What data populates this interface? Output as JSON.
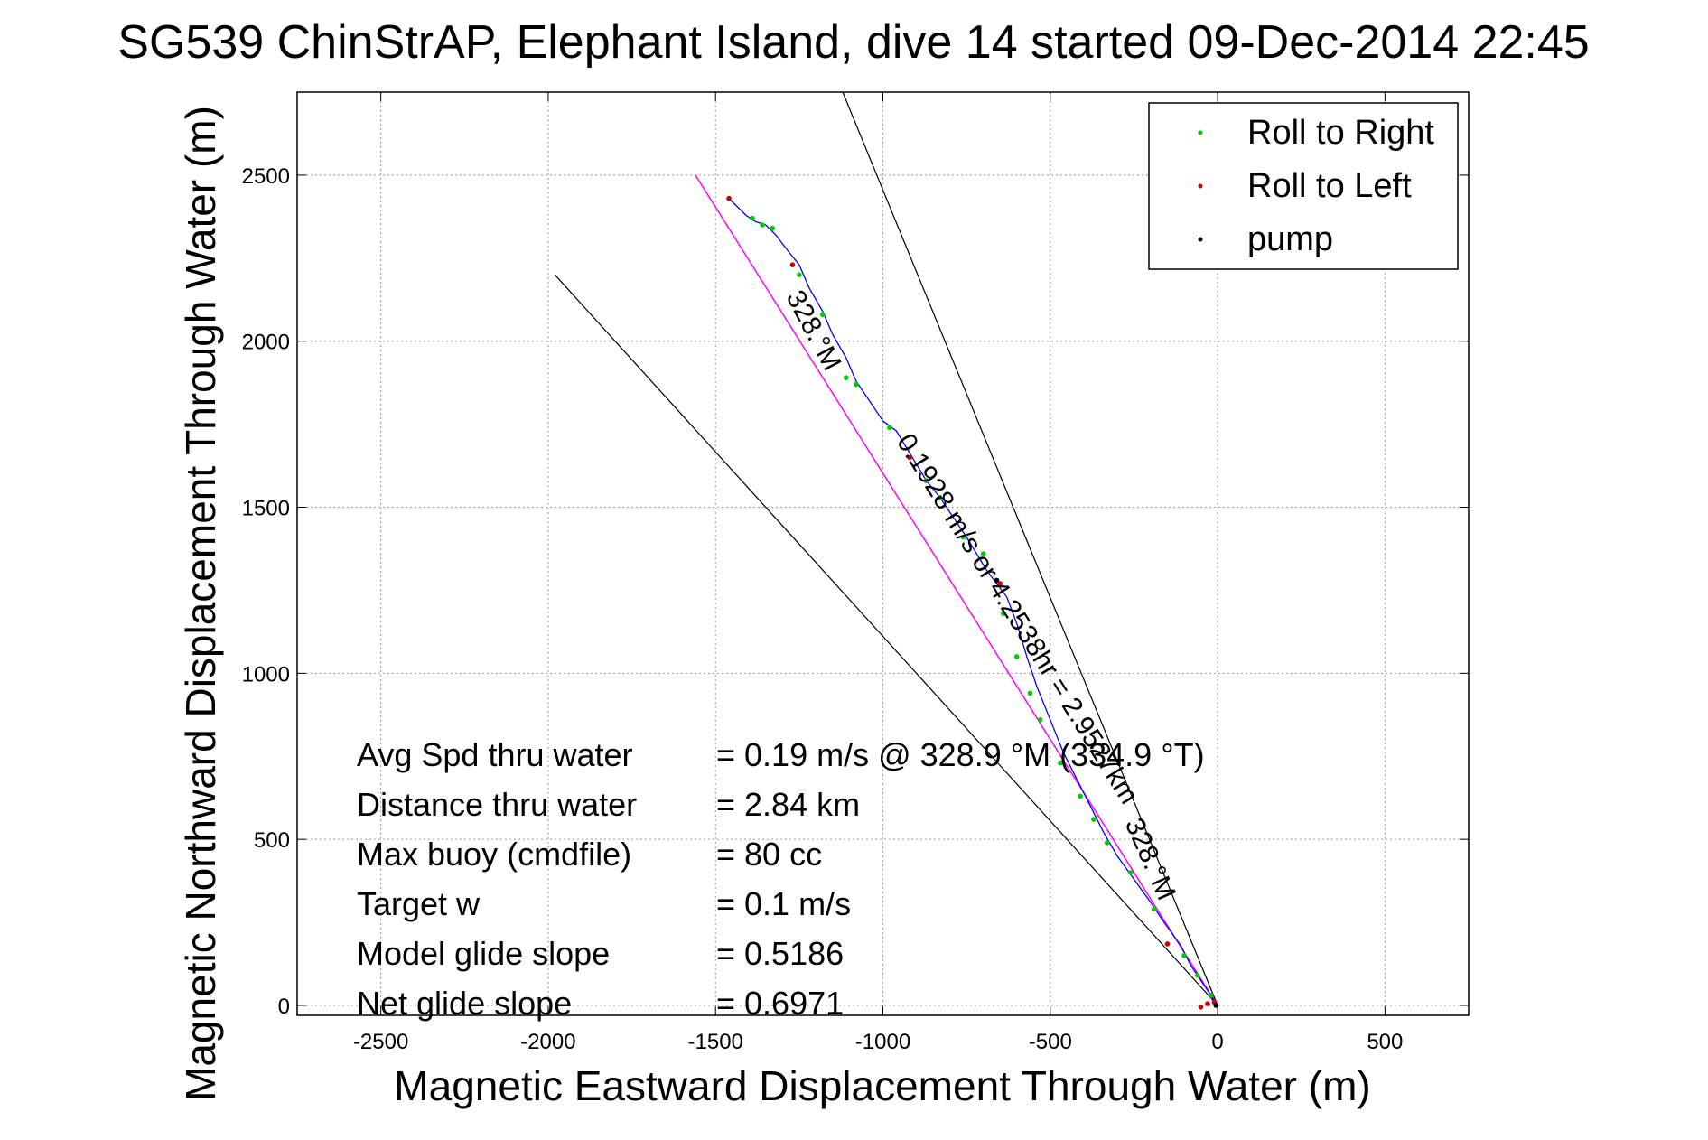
{
  "chart_data": {
    "type": "scatter",
    "title": "SG539 ChinStrAP, Elephant Island, dive 14 started 09-Dec-2014 22:45",
    "xlabel": "Magnetic Eastward Displacement Through Water (m)",
    "ylabel": "Magnetic Northward Displacement Through Water (m)",
    "xlim": [
      -2750,
      750
    ],
    "ylim": [
      -30,
      2750
    ],
    "xticks": [
      -2500,
      -2000,
      -1500,
      -1000,
      -500,
      0,
      500
    ],
    "yticks": [
      0,
      500,
      1000,
      1500,
      2000,
      2500
    ],
    "grid": true,
    "legend_position": "top-right",
    "legend": [
      {
        "label": "Roll to Right",
        "color": "#00cc00"
      },
      {
        "label": "Roll to Left",
        "color": "#cc0000"
      },
      {
        "label": "pump",
        "color": "#000000"
      }
    ],
    "colors": {
      "track": "#0000ff",
      "fit_line": "#ff00ff",
      "heading_lines": "#000000"
    },
    "track": {
      "x": [
        0,
        -40,
        -80,
        -110,
        -160,
        -200,
        -250,
        -300,
        -340,
        -380,
        -420,
        -460,
        -500,
        -540,
        -570,
        -600,
        -630,
        -660,
        -690,
        -720,
        -750,
        -790,
        -830,
        -870,
        -900,
        -930,
        -960,
        -1000,
        -1040,
        -1080,
        -1110,
        -1150,
        -1180,
        -1220,
        -1250,
        -1290,
        -1320,
        -1350,
        -1380,
        -1410,
        -1440,
        -1460
      ],
      "y": [
        0,
        60,
        120,
        180,
        250,
        310,
        380,
        450,
        520,
        600,
        680,
        760,
        860,
        960,
        1050,
        1150,
        1230,
        1270,
        1310,
        1360,
        1410,
        1470,
        1530,
        1580,
        1630,
        1680,
        1730,
        1760,
        1820,
        1880,
        1950,
        2020,
        2090,
        2160,
        2230,
        2280,
        2320,
        2350,
        2360,
        2380,
        2410,
        2430
      ]
    },
    "roll_right": {
      "x": [
        -20,
        -60,
        -100,
        -190,
        -260,
        -330,
        -370,
        -410,
        -470,
        -530,
        -560,
        -600,
        -640,
        -700,
        -760,
        -830,
        -870,
        -980,
        -1080,
        -1110,
        -1180,
        -1250,
        -1330,
        -1360,
        -1390
      ],
      "y": [
        30,
        90,
        150,
        290,
        400,
        490,
        560,
        630,
        730,
        860,
        940,
        1050,
        1180,
        1360,
        1410,
        1530,
        1580,
        1740,
        1870,
        1890,
        2080,
        2200,
        2340,
        2350,
        2370
      ]
    },
    "roll_left": {
      "x": [
        -10,
        -30,
        -50,
        -150,
        -650,
        -920,
        -1270,
        -1460
      ],
      "y": [
        10,
        5,
        -5,
        185,
        1270,
        1650,
        2230,
        2430
      ]
    },
    "pump": {
      "x": [
        -5,
        -660
      ],
      "y": [
        0,
        1280
      ]
    },
    "fit_line": {
      "x": [
        0,
        -1560
      ],
      "y": [
        0,
        2500
      ]
    },
    "heading_lines": [
      {
        "x": [
          0,
          -1980
        ],
        "y": [
          0,
          2200
        ]
      },
      {
        "x": [
          0,
          -1120
        ],
        "y": [
          0,
          2750
        ]
      }
    ],
    "heading_labels": [
      {
        "text": "328.°M",
        "x": -1230,
        "y": 2020,
        "angle": 62
      },
      {
        "text": "328.°M",
        "x": -225,
        "y": 430,
        "angle": 66
      }
    ],
    "speed_label": {
      "text": "0.1928 m/s or 4.2538hr = 2.9527km",
      "x": -620,
      "y": 1150,
      "angle": 58
    },
    "annotations": [
      {
        "label": "Avg Spd thru water",
        "value": "=  0.19 m/s @ 328.9 °M (334.9 °T)"
      },
      {
        "label": "Distance thru water",
        "value": "=  2.84 km"
      },
      {
        "label": "Max buoy (cmdfile)",
        "value": "= 80 cc"
      },
      {
        "label": "Target w",
        "value": "= 0.1 m/s"
      },
      {
        "label": "Model glide slope",
        "value": "= 0.5186"
      },
      {
        "label": "Net glide slope",
        "value": "= 0.6971"
      }
    ]
  }
}
